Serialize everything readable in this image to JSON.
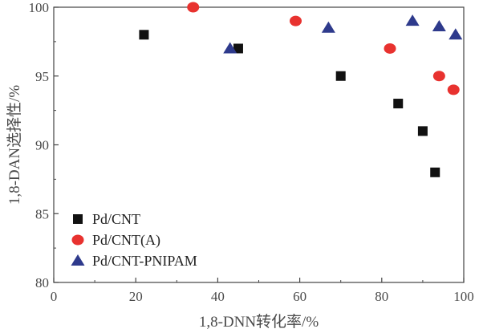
{
  "chart_data": {
    "type": "scatter",
    "xlabel": "1,8-DNN转化率/%",
    "ylabel": "1,8-DAN选择性/%",
    "xlim": [
      0,
      100
    ],
    "ylim": [
      80,
      100
    ],
    "xticks": [
      0,
      20,
      40,
      60,
      80,
      100
    ],
    "yticks": [
      80,
      85,
      90,
      95,
      100
    ],
    "grid": false,
    "legend_position": "bottom-left",
    "series": [
      {
        "name": "Pd/CNT",
        "marker": "square",
        "color": "#111111",
        "x": [
          22,
          45,
          70,
          84,
          90,
          93
        ],
        "y": [
          98,
          97,
          95,
          93,
          91,
          88
        ]
      },
      {
        "name": "Pd/CNT(A)",
        "marker": "circle",
        "color": "#e8322f",
        "x": [
          34,
          59,
          82,
          94,
          97.5
        ],
        "y": [
          100,
          99,
          97,
          95,
          94
        ]
      },
      {
        "name": "Pd/CNT-PNIPAM",
        "marker": "triangle",
        "color": "#2e3a8c",
        "x": [
          43,
          67,
          87.5,
          94,
          98
        ],
        "y": [
          97,
          98.5,
          99,
          98.6,
          98
        ]
      }
    ]
  }
}
